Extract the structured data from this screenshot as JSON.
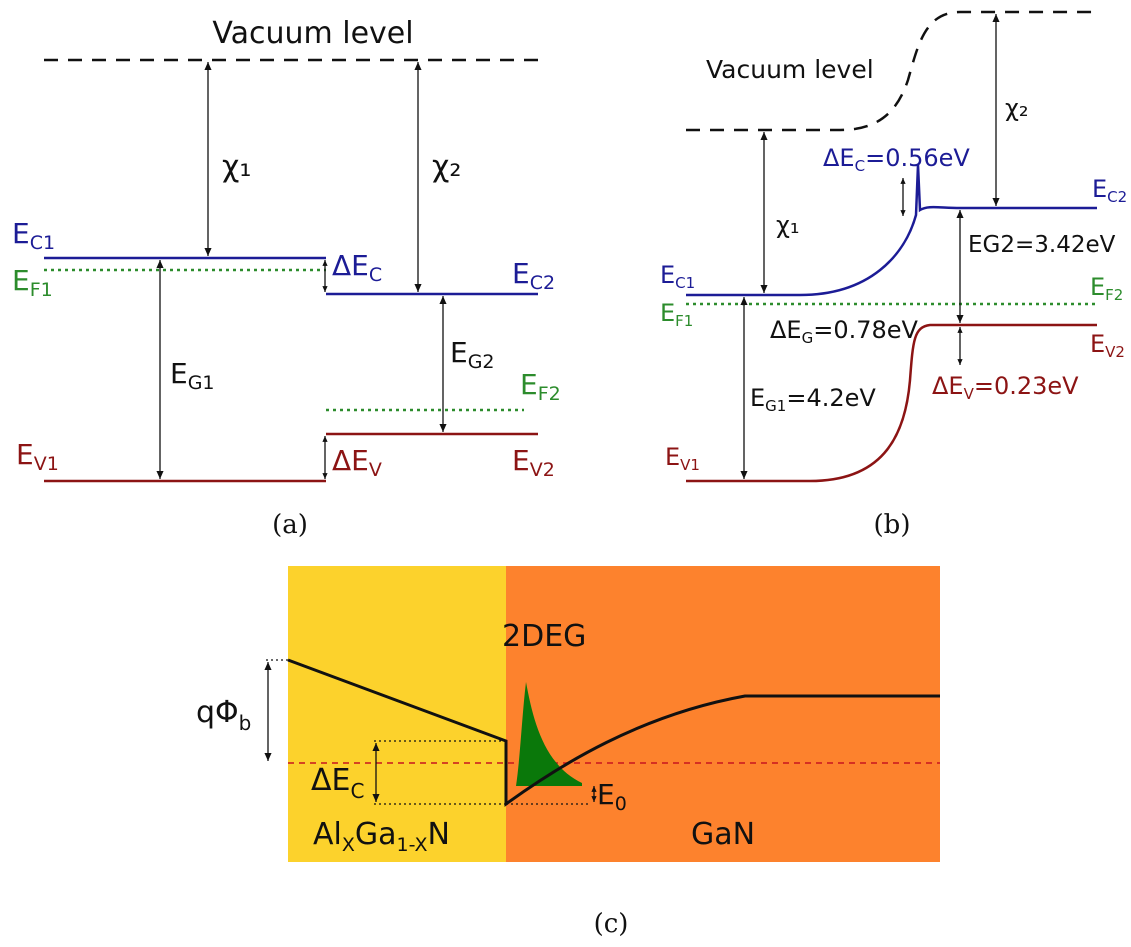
{
  "colors": {
    "conduction": "#1c1c96",
    "fermi": "#2c8c2c",
    "valence": "#8c1414",
    "black": "#111111",
    "algan_fill": "#fcd22c",
    "gan_fill": "#fd822d",
    "gas_fill": "#0a780a",
    "fermi_c": "#c8141e"
  },
  "panel_a": {
    "vacuum": "Vacuum level",
    "chi1": "χ₁",
    "chi2": "χ₂",
    "ec1": "E",
    "ec1_sub": "C1",
    "ef1": "E",
    "ef1_sub": "F1",
    "ev1": "E",
    "ev1_sub": "V1",
    "ec2": "E",
    "ec2_sub": "C2",
    "ef2": "E",
    "ef2_sub": "F2",
    "ev2": "E",
    "ev2_sub": "V2",
    "eg1": "E",
    "eg1_sub": "G1",
    "eg2": "E",
    "eg2_sub": "G2",
    "dec": "ΔE",
    "dec_sub": "C",
    "dev": "ΔE",
    "dev_sub": "V",
    "caption": "(a)"
  },
  "panel_b": {
    "vacuum": "Vacuum level",
    "chi1": "χ₁",
    "chi2": "χ₂",
    "dec": "ΔE",
    "dec_sub": "C",
    "dec_val": "=0.56eV",
    "eg2": "EG2=3.42eV",
    "dg": "ΔE",
    "dg_sub": "G",
    "dg_val": "=0.78eV",
    "eg1": "E",
    "eg1_sub": "G1",
    "eg1_val": "=4.2eV",
    "dev": "ΔE",
    "dev_sub": "V",
    "dev_val": "=0.23eV",
    "ec1": "E",
    "ec1_sub": "C1",
    "ef1": "E",
    "ef1_sub": "F1",
    "ev1": "E",
    "ev1_sub": "V1",
    "ec2": "E",
    "ec2_sub": "C2",
    "ef2": "E",
    "ef2_sub": "F2",
    "ev2": "E",
    "ev2_sub": "V2",
    "caption": "(b)"
  },
  "panel_c": {
    "qphi": "qΦ",
    "qphi_sub": "b",
    "deg": "2DEG",
    "dec": "ΔE",
    "dec_sub": "C",
    "e0": "E",
    "e0_sub": "0",
    "algan_1": "Al",
    "algan_x": "X",
    "algan_2": "Ga",
    "algan_sub2": "1-X",
    "algan_3": "N",
    "gan": "GaN",
    "caption": "(c)"
  }
}
